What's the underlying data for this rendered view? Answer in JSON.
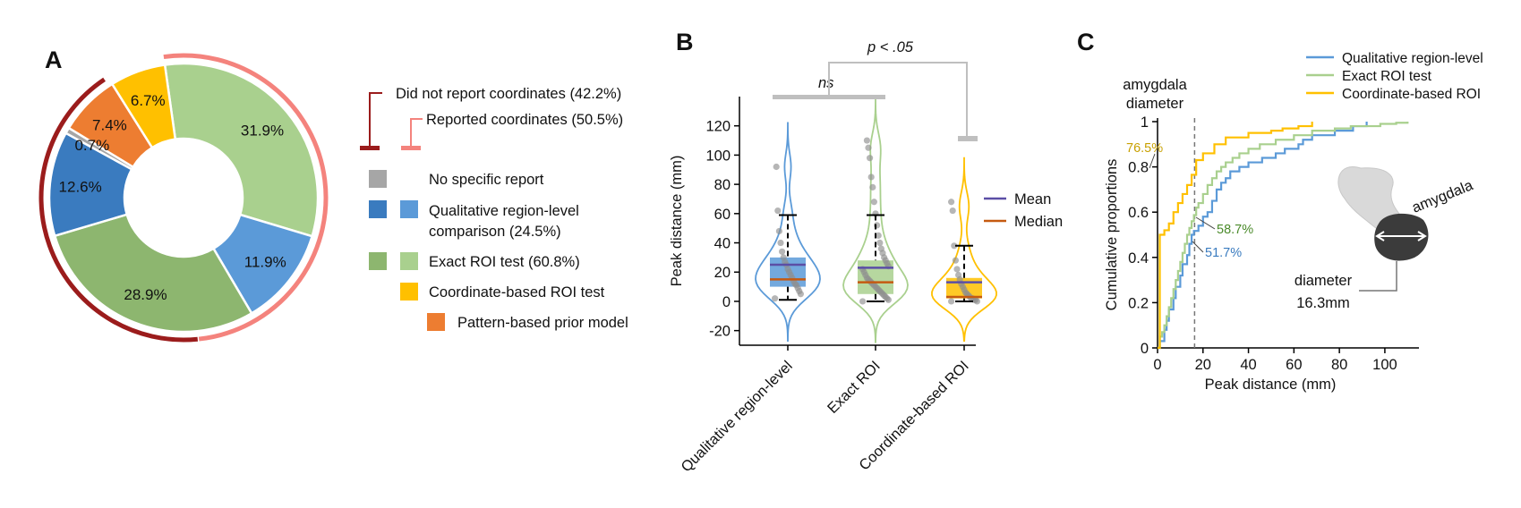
{
  "panels": {
    "a": "A",
    "b": "B",
    "c": "C"
  },
  "colors": {
    "none": "#a6a6a6",
    "qual_dark": "#3a7bbf",
    "qual_light": "#5b9ad8",
    "exact_dark": "#8db66f",
    "exact_light": "#a9d08e",
    "coord": "#ffc000",
    "pattern": "#ed7d31",
    "not_reported_arc": "#9b1c1c",
    "reported_arc": "#f4837d",
    "mean": "#5b4ea6",
    "median": "#c55a11"
  },
  "chart_data": [
    {
      "type": "pie",
      "style": "donut",
      "slices": [
        {
          "label": "31.9%",
          "value": 31.9,
          "group": "Exact ROI test",
          "color": "#a9d08e"
        },
        {
          "label": "11.9%",
          "value": 11.9,
          "group": "Qualitative region-level",
          "color": "#5b9ad8"
        },
        {
          "label": "28.9%",
          "value": 28.9,
          "group": "Exact ROI test",
          "color": "#8db66f"
        },
        {
          "label": "12.6%",
          "value": 12.6,
          "group": "Qualitative region-level",
          "color": "#3a7bbf"
        },
        {
          "label": "0.7%",
          "value": 0.7,
          "group": "No specific report",
          "color": "#a6a6a6"
        },
        {
          "label": "7.4%",
          "value": 7.4,
          "group": "Pattern-based prior model",
          "color": "#ed7d31"
        },
        {
          "label": "6.7%",
          "value": 6.7,
          "group": "Coordinate-based ROI test",
          "color": "#ffc000"
        }
      ],
      "outer_arcs": [
        {
          "label": "Did not report coordinates (42.2%)",
          "value": 42.2,
          "color": "#9b1c1c"
        },
        {
          "label": "Reported coordinates (50.5%)",
          "value": 50.5,
          "color": "#f4837d"
        }
      ],
      "legend": [
        {
          "label": "No specific report",
          "colors": [
            "#a6a6a6"
          ]
        },
        {
          "label": "Qualitative region-level",
          "label2": "comparison (24.5%)",
          "colors": [
            "#3a7bbf",
            "#5b9ad8"
          ]
        },
        {
          "label": "Exact ROI test (60.8%)",
          "colors": [
            "#8db66f",
            "#a9d08e"
          ]
        },
        {
          "label": "Coordinate-based ROI test",
          "colors": [
            "#ffc000"
          ]
        },
        {
          "label": "Pattern-based prior model",
          "colors": [
            "#ed7d31"
          ]
        }
      ]
    },
    {
      "type": "violin",
      "ylabel": "Peak distance (mm)",
      "ylim": [
        -30,
        140
      ],
      "yticks": [
        -20,
        0,
        20,
        40,
        60,
        80,
        100,
        120
      ],
      "ytick_labels": [
        "-20",
        "0",
        "20",
        "40",
        "60",
        "80",
        "100",
        "120"
      ],
      "categories": [
        "Qualitative region-level",
        "Exact ROI",
        "Coordinate-based ROI"
      ],
      "series": [
        {
          "q1": 10,
          "median": 15,
          "q3": 30,
          "mean": 25,
          "whisker_low": 1,
          "whisker_high": 59,
          "max": 122,
          "min": -27,
          "color": "#5b9ad8",
          "points": [
            2,
            5,
            7,
            9,
            11,
            12,
            14,
            16,
            18,
            20,
            22,
            25,
            27,
            30,
            34,
            40,
            48,
            62,
            92
          ]
        },
        {
          "q1": 5,
          "median": 13,
          "q3": 28,
          "mean": 23,
          "whisker_low": 0,
          "whisker_high": 59,
          "max": 140,
          "min": -28,
          "color": "#a9d08e",
          "points": [
            0,
            1,
            2,
            3,
            4,
            5,
            6,
            7,
            8,
            9,
            10,
            11,
            12,
            13,
            14,
            15,
            16,
            18,
            20,
            22,
            24,
            26,
            28,
            30,
            33,
            36,
            40,
            45,
            52,
            60,
            68,
            78,
            85,
            98,
            105,
            110
          ]
        },
        {
          "q1": 2,
          "median": 3,
          "q3": 16,
          "mean": 13,
          "whisker_low": 0,
          "whisker_high": 38,
          "max": 98,
          "min": -27,
          "color": "#ffc000",
          "points": [
            0,
            0,
            1,
            1,
            2,
            2,
            3,
            4,
            5,
            6,
            8,
            10,
            12,
            15,
            18,
            22,
            28,
            38,
            62,
            68
          ]
        }
      ],
      "legend": [
        {
          "label": "Mean",
          "color": "#5b4ea6"
        },
        {
          "label": "Median",
          "color": "#c55a11"
        }
      ],
      "annotations": {
        "ns": "ns",
        "p": "p < .05"
      }
    },
    {
      "type": "line",
      "subtype": "cdf",
      "xlabel": "Peak distance (mm)",
      "ylabel": "Cumulative proportions",
      "xlim": [
        0,
        115
      ],
      "ylim": [
        0,
        1
      ],
      "xticks": [
        0,
        20,
        40,
        60,
        80,
        100
      ],
      "xtick_labels": [
        "0",
        "20",
        "40",
        "60",
        "80",
        "100"
      ],
      "yticks": [
        0,
        0.2,
        0.4,
        0.6,
        0.8,
        1
      ],
      "ytick_labels": [
        "0",
        "0.2",
        "0.4",
        "0.6",
        "0.8",
        "1"
      ],
      "series": [
        {
          "name": "Qualitative region-level",
          "color": "#5b9ad8",
          "x": [
            0,
            1,
            2,
            3,
            4,
            5,
            6,
            7,
            8,
            9,
            10,
            11,
            12,
            13,
            14,
            15,
            16,
            18,
            20,
            22,
            24,
            26,
            28,
            30,
            32,
            36,
            40,
            46,
            52,
            56,
            62,
            64,
            68,
            78,
            86,
            92
          ],
          "y": [
            0,
            0.03,
            0.03,
            0.08,
            0.12,
            0.17,
            0.17,
            0.22,
            0.27,
            0.27,
            0.32,
            0.37,
            0.37,
            0.41,
            0.46,
            0.5,
            0.517,
            0.54,
            0.58,
            0.6,
            0.65,
            0.7,
            0.73,
            0.75,
            0.78,
            0.8,
            0.82,
            0.84,
            0.86,
            0.88,
            0.9,
            0.92,
            0.94,
            0.96,
            0.98,
            1
          ]
        },
        {
          "name": "Exact ROI test",
          "color": "#a9d08e",
          "x": [
            0,
            1,
            2,
            3,
            4,
            5,
            6,
            7,
            8,
            9,
            10,
            11,
            12,
            13,
            14,
            15,
            16,
            17,
            18,
            20,
            22,
            24,
            26,
            28,
            30,
            33,
            36,
            40,
            45,
            52,
            60,
            68,
            78,
            85,
            98,
            105,
            110
          ],
          "y": [
            0,
            0.05,
            0.07,
            0.1,
            0.14,
            0.18,
            0.22,
            0.26,
            0.3,
            0.34,
            0.38,
            0.42,
            0.46,
            0.5,
            0.53,
            0.56,
            0.587,
            0.62,
            0.64,
            0.68,
            0.72,
            0.75,
            0.78,
            0.8,
            0.82,
            0.84,
            0.86,
            0.88,
            0.9,
            0.92,
            0.94,
            0.96,
            0.97,
            0.98,
            0.99,
            0.995,
            1
          ]
        },
        {
          "name": "Coordinate-based ROI",
          "color": "#ffc000",
          "x": [
            0,
            1,
            3,
            5,
            7,
            9,
            11,
            13,
            15,
            17,
            20,
            25,
            30,
            40,
            50,
            55,
            62,
            68
          ],
          "y": [
            0,
            0.5,
            0.52,
            0.55,
            0.6,
            0.64,
            0.68,
            0.72,
            0.765,
            0.83,
            0.86,
            0.9,
            0.93,
            0.95,
            0.96,
            0.97,
            0.98,
            1
          ]
        }
      ],
      "legend_position": "top-right",
      "reference_line": {
        "x": 16.3,
        "label": "amygdala",
        "label2": "diameter"
      },
      "annotations": [
        {
          "text": "76.5%",
          "color": "#c8a000"
        },
        {
          "text": "58.7%",
          "color": "#4a8a2a"
        },
        {
          "text": "51.7%",
          "color": "#3a7bbf"
        }
      ],
      "inset": {
        "label": "amygdala",
        "diameter_label": "diameter",
        "diameter_value": "16.3mm"
      }
    }
  ]
}
